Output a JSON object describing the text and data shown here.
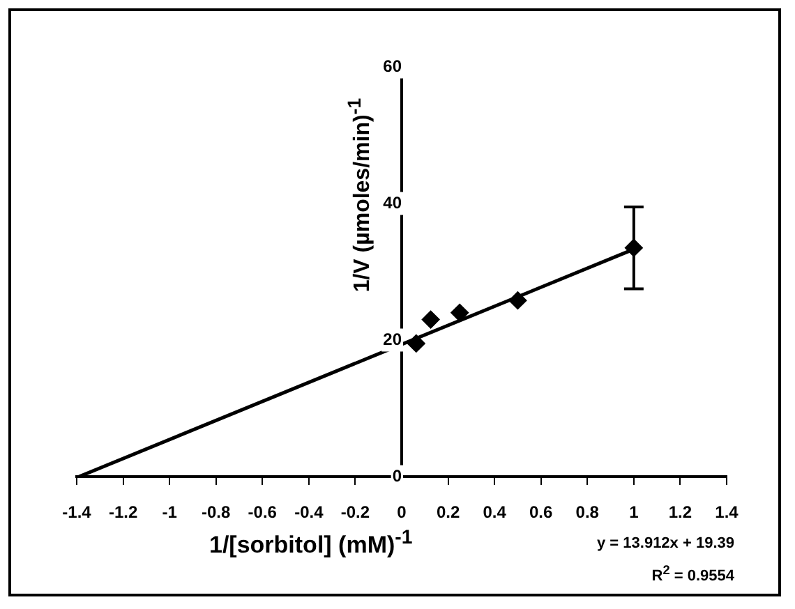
{
  "chart_data": {
    "type": "scatter",
    "xlabel": "1/[sorbitol] (mM)$^{-1}$",
    "ylabel": "1/V (µmoles/min)$^{-1}$",
    "xlim": [
      -1.4,
      1.4
    ],
    "xticks": [
      -1.4,
      -1.2,
      -1,
      -0.8,
      -0.6,
      -0.4,
      -0.2,
      0,
      0.2,
      0.4,
      0.6,
      0.8,
      1,
      1.2,
      1.4
    ],
    "ylim": [
      0,
      60
    ],
    "yticks": [
      0,
      20,
      40,
      60
    ],
    "grid": false,
    "legend": false,
    "marker": "diamond",
    "series": [
      {
        "type": "scatter",
        "color": "#000000",
        "x": [
          0.0625,
          0.125,
          0.25,
          0.5,
          1
        ],
        "values": [
          19.5,
          23,
          24,
          25.8,
          33.5
        ],
        "errors": [
          null,
          null,
          null,
          null,
          6
        ]
      },
      {
        "type": "line",
        "color": "#000000",
        "marker": "none",
        "x": [
          -1.39,
          1
        ],
        "values": [
          0,
          33.3
        ]
      }
    ],
    "annotations": [
      "y = 13.912x + 19.39",
      "R$^{2}$ = 0.9554"
    ]
  }
}
